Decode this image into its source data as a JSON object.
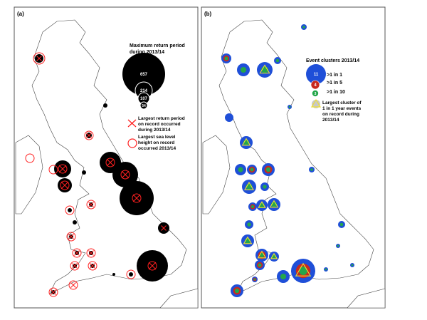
{
  "panel_a": {
    "label": "(a)",
    "legend_title_line1": "Maximum return period",
    "legend_title_line2": "during 2013/14",
    "size_values": [
      "657",
      "214",
      "107",
      "54"
    ],
    "cross_legend": [
      "Largest return period",
      "on record occurred",
      "during 2013/14"
    ],
    "circle_legend": [
      "Largest sea level",
      "height on record",
      "occurred 2013/14"
    ],
    "colors": {
      "symbol": "#000000",
      "record": "#ff2020"
    }
  },
  "panel_b": {
    "label": "(b)",
    "legend_title": "Event clusters 2013/14",
    "classes": [
      {
        "count": "11",
        "label": ">1 in 1",
        "color": "#1f4fd8"
      },
      {
        "count": "4",
        "label": ">1 in 5",
        "color": "#c8281e"
      },
      {
        "count": "3",
        "label": ">1 in 10",
        "color": "#23a64a"
      }
    ],
    "triangle_legend": [
      "Largest cluster of",
      "1 in 1 year events",
      "on record during",
      "2013/14"
    ],
    "colors": {
      "triangle": "#f0e030",
      "triangle_fill": "#c8c8c8"
    }
  }
}
